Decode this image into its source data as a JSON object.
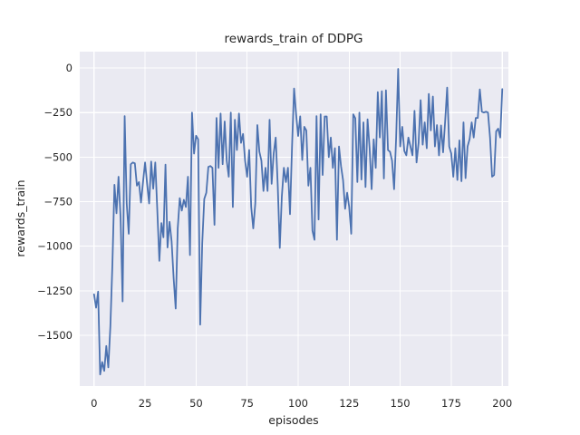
{
  "figure": {
    "kind": "matplotlib-seaborn-figure",
    "background": "#ffffff"
  },
  "chart_data": {
    "type": "line",
    "title": "rewards_train of DDPG",
    "xlabel": "episodes",
    "ylabel": "rewards_train",
    "legend": false,
    "grid": true,
    "style": "seaborn-darkgrid",
    "axes_bg_color": "#eaeaf2",
    "grid_color": "#ffffff",
    "line_color": "#4c72b0",
    "text_color": "#262626",
    "xlim": [
      -7,
      203
    ],
    "ylim": [
      -1785,
      92
    ],
    "xticks": [
      0,
      25,
      50,
      75,
      100,
      125,
      150,
      175,
      200
    ],
    "yticks": [
      0,
      -250,
      -500,
      -750,
      -1000,
      -1250,
      -1500
    ],
    "x_start": 0,
    "x_step": 1,
    "values": [
      -1270,
      -1345,
      -1255,
      -1720,
      -1650,
      -1700,
      -1560,
      -1680,
      -1450,
      -1100,
      -655,
      -815,
      -610,
      -840,
      -1310,
      -270,
      -760,
      -930,
      -540,
      -530,
      -535,
      -660,
      -640,
      -755,
      -640,
      -530,
      -650,
      -760,
      -525,
      -677,
      -530,
      -800,
      -1082,
      -870,
      -950,
      -542,
      -1007,
      -863,
      -973,
      -1180,
      -1350,
      -900,
      -730,
      -800,
      -740,
      -780,
      -610,
      -1050,
      -250,
      -480,
      -380,
      -400,
      -1440,
      -985,
      -735,
      -700,
      -555,
      -550,
      -560,
      -880,
      -280,
      -560,
      -255,
      -540,
      -300,
      -520,
      -610,
      -250,
      -780,
      -290,
      -460,
      -255,
      -420,
      -370,
      -520,
      -610,
      -460,
      -780,
      -900,
      -760,
      -320,
      -470,
      -520,
      -690,
      -560,
      -690,
      -290,
      -650,
      -480,
      -390,
      -660,
      -1010,
      -720,
      -560,
      -640,
      -560,
      -820,
      -440,
      -115,
      -260,
      -381,
      -271,
      -516,
      -330,
      -350,
      -660,
      -560,
      -913,
      -964,
      -270,
      -850,
      -260,
      -600,
      -272,
      -272,
      -500,
      -390,
      -560,
      -450,
      -964,
      -440,
      -550,
      -630,
      -790,
      -700,
      -780,
      -930,
      -260,
      -282,
      -640,
      -250,
      -626,
      -305,
      -668,
      -288,
      -450,
      -680,
      -400,
      -560,
      -135,
      -390,
      -130,
      -620,
      -125,
      -460,
      -470,
      -520,
      -680,
      -390,
      -5,
      -440,
      -330,
      -465,
      -490,
      -390,
      -440,
      -490,
      -240,
      -530,
      -420,
      -180,
      -430,
      -305,
      -450,
      -145,
      -350,
      -160,
      -440,
      -320,
      -490,
      -322,
      -473,
      -300,
      -110,
      -440,
      -480,
      -610,
      -450,
      -628,
      -406,
      -635,
      -305,
      -618,
      -440,
      -398,
      -305,
      -390,
      -280,
      -280,
      -120,
      -245,
      -250,
      -245,
      -250,
      -390,
      -610,
      -600,
      -355,
      -340,
      -390,
      -118
    ]
  }
}
